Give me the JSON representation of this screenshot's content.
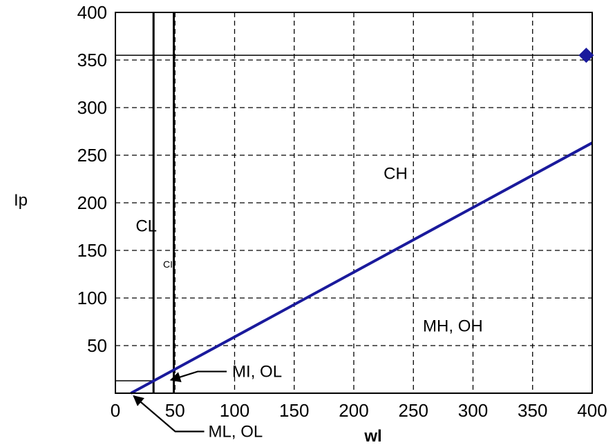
{
  "chart_data": {
    "type": "line",
    "title": "",
    "xlabel": "wl",
    "ylabel": "Ip",
    "xlim": [
      0,
      400
    ],
    "ylim": [
      0,
      400
    ],
    "xticks": [
      0,
      50,
      100,
      150,
      200,
      250,
      300,
      350,
      400
    ],
    "xtick_labels": [
      "0",
      "50",
      "100",
      "150",
      "200",
      "250",
      "300",
      "350",
      "400"
    ],
    "yticks": [
      50,
      100,
      150,
      200,
      250,
      300,
      350,
      400
    ],
    "ytick_labels": [
      "50",
      "100",
      "150",
      "200",
      "250",
      "300",
      "350",
      "400"
    ],
    "grid": true,
    "a_line": {
      "x": [
        13,
        400
      ],
      "y": [
        0,
        263
      ],
      "color": "#1a1a9c"
    },
    "vertical_lines": [
      {
        "x": 32
      },
      {
        "x": 49
      }
    ],
    "horizontal_lines": [
      {
        "y": 355
      },
      {
        "y": 13,
        "x_max": 32
      }
    ],
    "points": [
      {
        "x": 395,
        "y": 355,
        "marker": "diamond",
        "color": "#1a1a9c"
      }
    ],
    "regions": [
      {
        "label": "CH",
        "x": 225,
        "y": 225
      },
      {
        "label": "CL",
        "x": 17,
        "y": 170
      },
      {
        "label": "CI",
        "x": 40,
        "y": 132
      },
      {
        "label": "MH, OH",
        "x": 258,
        "y": 65
      }
    ],
    "annotations": [
      {
        "label": "MI, OL",
        "text_x": 98,
        "text_y": 17,
        "arrow_x": 43,
        "arrow_y": 11
      },
      {
        "label": "ML, OL",
        "text_x": 78,
        "text_y": -46,
        "arrow_x": 13,
        "arrow_y": 0
      }
    ]
  }
}
